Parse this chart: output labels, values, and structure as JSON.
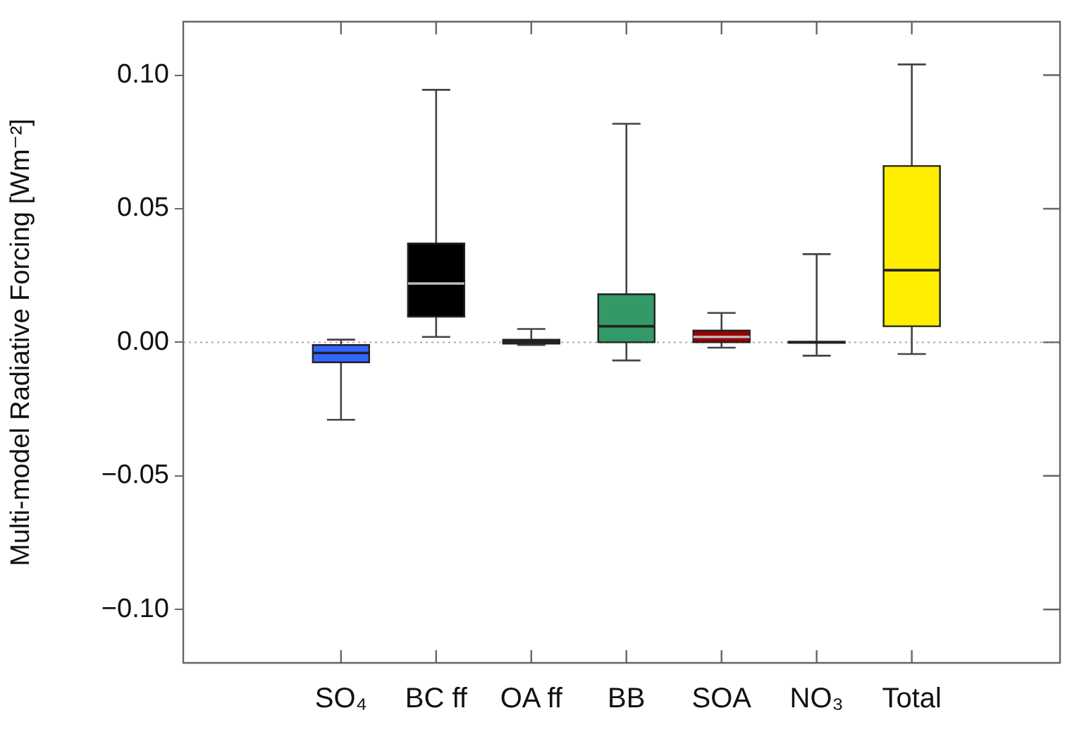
{
  "chart_data": {
    "type": "box",
    "ylabel": "Multi-model Radiative Forcing [Wm⁻²]",
    "categories": [
      "SO₄",
      "BC ff",
      "OA ff",
      "BB",
      "SOA",
      "NO₃",
      "Total"
    ],
    "colors": [
      "#3366ff",
      "#000000",
      "#000000",
      "#339966",
      "#990000",
      "#000000",
      "#ffee00"
    ],
    "boxes": [
      {
        "low": -0.029,
        "q1": -0.0075,
        "median": -0.004,
        "q3": -0.001,
        "high": 0.001
      },
      {
        "low": 0.002,
        "q1": 0.0096,
        "median": 0.022,
        "q3": 0.037,
        "high": 0.0945
      },
      {
        "low": -0.001,
        "q1": -0.0005,
        "median": 0.0003,
        "q3": 0.001,
        "high": 0.005
      },
      {
        "low": -0.0068,
        "q1": 0,
        "median": 0.006,
        "q3": 0.018,
        "high": 0.0818
      },
      {
        "low": -0.002,
        "q1": 0,
        "median": 0.002,
        "q3": 0.0044,
        "high": 0.011
      },
      {
        "low": -0.005,
        "q1": -0.0002,
        "median": 0,
        "q3": 0.0002,
        "high": 0.033
      },
      {
        "low": -0.0044,
        "q1": 0.006,
        "median": 0.027,
        "q3": 0.066,
        "high": 0.104
      }
    ],
    "ylim": [
      -0.12,
      0.12
    ],
    "yticks": [
      {
        "value": -0.1,
        "label": "−0.10"
      },
      {
        "value": -0.05,
        "label": "−0.05"
      },
      {
        "value": 0,
        "label": "0.00"
      },
      {
        "value": 0.05,
        "label": "0.05"
      },
      {
        "value": 0.1,
        "label": "0.10"
      }
    ],
    "ref_lines": [
      {
        "axis": "y",
        "value": 0,
        "color": "#aaaaaa",
        "line_style": "dotted"
      }
    ],
    "grid": false,
    "legend": false
  }
}
